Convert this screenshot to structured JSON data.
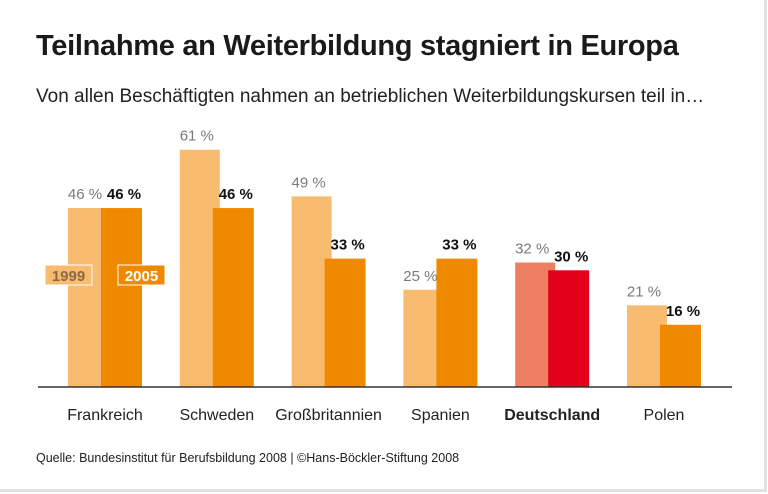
{
  "title": "Teilnahme an Weiterbildung stagniert in Europa",
  "subtitle": "Von allen Beschäftigten nahmen an betrieblichen Weiterbildungskursen teil in…",
  "source": "Quelle: Bundesinstitut für Berufsbildung 2008 | ©Hans-Böckler-Stiftung 2008",
  "chart_data": {
    "type": "bar",
    "categories": [
      "Frankreich",
      "Schweden",
      "Großbritannien",
      "Spanien",
      "Deutschland",
      "Polen"
    ],
    "highlight_category": "Deutschland",
    "series": [
      {
        "name": "1999",
        "values": [
          46,
          61,
          49,
          25,
          32,
          21
        ],
        "labels": [
          "46 %",
          "61 %",
          "49 %",
          "25 %",
          "32 %",
          "21 %"
        ]
      },
      {
        "name": "2005",
        "values": [
          46,
          46,
          33,
          33,
          30,
          16
        ],
        "labels": [
          "46 %",
          "46 %",
          "33 %",
          "33 %",
          "30 %",
          "16 %"
        ]
      }
    ],
    "unit": "%",
    "ylim": [
      0,
      65
    ],
    "grid": false,
    "legend": "inside-left",
    "colors": {
      "1999": "#f8bb70",
      "2005": "#ef8a00",
      "1999_highlight": "#ee7f62",
      "2005_highlight": "#e2001a",
      "label_1999": "#7a7a7a",
      "label_2005": "#111111",
      "axis": "#333333"
    }
  }
}
